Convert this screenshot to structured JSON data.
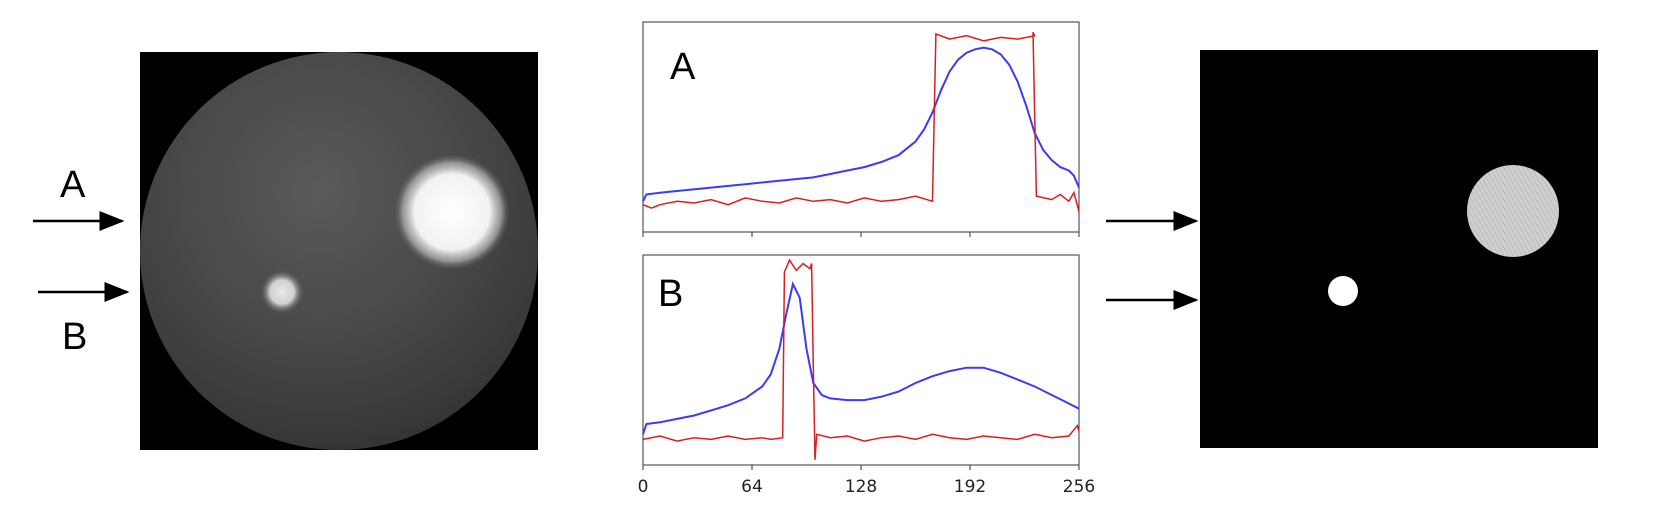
{
  "labels": {
    "a": "A",
    "b": "B"
  },
  "colors": {
    "blue": "#3b3bf5",
    "red": "#d81f1f",
    "background": "#000000"
  },
  "chart_data": [
    {
      "type": "line",
      "panel_label": "A",
      "xlim": [
        0,
        256
      ],
      "series": [
        {
          "color": "blue",
          "x": [
            0,
            2,
            10,
            20,
            40,
            60,
            80,
            100,
            110,
            120,
            130,
            140,
            150,
            160,
            165,
            170,
            175,
            180,
            185,
            190,
            195,
            200,
            205,
            210,
            215,
            220,
            225,
            230,
            235,
            240,
            245,
            250,
            253,
            256
          ],
          "y": [
            0.1,
            0.14,
            0.15,
            0.16,
            0.18,
            0.2,
            0.22,
            0.24,
            0.26,
            0.28,
            0.3,
            0.33,
            0.37,
            0.45,
            0.52,
            0.62,
            0.75,
            0.86,
            0.93,
            0.97,
            0.99,
            1.0,
            0.99,
            0.96,
            0.9,
            0.8,
            0.66,
            0.5,
            0.4,
            0.34,
            0.3,
            0.28,
            0.25,
            0.18
          ]
        },
        {
          "color": "red",
          "x": [
            0,
            5,
            10,
            20,
            30,
            40,
            50,
            60,
            70,
            80,
            90,
            100,
            110,
            120,
            130,
            140,
            150,
            160,
            170,
            171,
            172,
            180,
            190,
            200,
            210,
            220,
            230,
            229,
            230,
            231,
            240,
            245,
            250,
            253,
            256
          ],
          "y": [
            0.08,
            0.06,
            0.08,
            0.1,
            0.09,
            0.11,
            0.08,
            0.12,
            0.1,
            0.09,
            0.12,
            0.1,
            0.11,
            0.09,
            0.12,
            0.1,
            0.11,
            0.13,
            0.1,
            0.6,
            1.08,
            1.05,
            1.07,
            1.04,
            1.06,
            1.05,
            1.07,
            1.09,
            0.6,
            0.13,
            0.11,
            0.14,
            0.1,
            0.15,
            0.04
          ]
        }
      ]
    },
    {
      "type": "line",
      "panel_label": "B",
      "xlim": [
        0,
        256
      ],
      "xticks": [
        "0",
        "64",
        "128",
        "192",
        "256"
      ],
      "series": [
        {
          "color": "blue",
          "x": [
            0,
            2,
            10,
            20,
            30,
            40,
            50,
            60,
            70,
            75,
            80,
            84,
            88,
            92,
            96,
            100,
            105,
            110,
            120,
            130,
            140,
            150,
            160,
            170,
            180,
            190,
            200,
            210,
            220,
            230,
            240,
            250,
            256
          ],
          "y": [
            0.1,
            0.16,
            0.17,
            0.19,
            0.21,
            0.24,
            0.27,
            0.31,
            0.38,
            0.45,
            0.6,
            0.8,
            0.98,
            0.9,
            0.6,
            0.4,
            0.33,
            0.31,
            0.3,
            0.3,
            0.32,
            0.35,
            0.4,
            0.44,
            0.47,
            0.49,
            0.49,
            0.46,
            0.42,
            0.38,
            0.33,
            0.28,
            0.25
          ]
        },
        {
          "color": "red",
          "x": [
            0,
            10,
            20,
            30,
            40,
            50,
            60,
            70,
            75,
            82,
            83,
            86,
            90,
            94,
            98,
            99,
            100,
            101,
            102,
            110,
            120,
            130,
            140,
            150,
            160,
            170,
            180,
            190,
            200,
            210,
            220,
            230,
            240,
            250,
            255,
            256
          ],
          "y": [
            0.07,
            0.09,
            0.06,
            0.08,
            0.07,
            0.09,
            0.07,
            0.08,
            0.07,
            0.08,
            1.05,
            1.12,
            1.06,
            1.1,
            1.07,
            1.1,
            0.5,
            -0.05,
            0.1,
            0.08,
            0.09,
            0.06,
            0.08,
            0.09,
            0.07,
            0.1,
            0.08,
            0.07,
            0.09,
            0.08,
            0.07,
            0.1,
            0.08,
            0.09,
            0.15,
            0.12
          ]
        }
      ]
    }
  ]
}
